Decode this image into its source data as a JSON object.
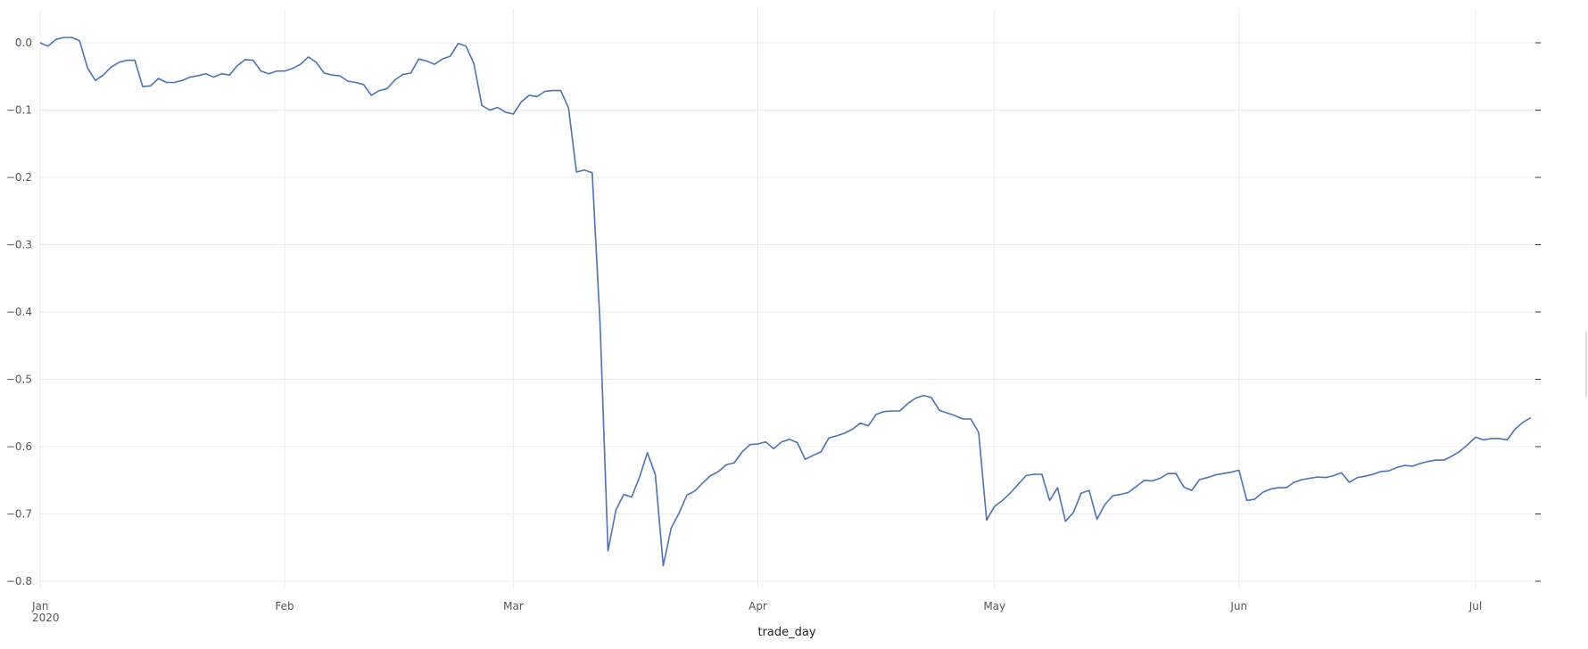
{
  "chart_data": {
    "type": "line",
    "xlabel": "trade_day",
    "ylabel": "",
    "ylim": [
      -0.8,
      0.0
    ],
    "xlim": [
      "2020-01-01",
      "2020-07-08"
    ],
    "grid": true,
    "y_ticks": [
      0.0,
      -0.1,
      -0.2,
      -0.3,
      -0.4,
      -0.5,
      -0.6,
      -0.7,
      -0.8
    ],
    "y_tick_labels": [
      "0.0",
      "−0.1",
      "−0.2",
      "−0.3",
      "−0.4",
      "−0.5",
      "−0.6",
      "−0.7",
      "−0.8"
    ],
    "x_ticks": [
      {
        "date": "2020-01-01",
        "label": "Jan",
        "sublabel": "2020"
      },
      {
        "date": "2020-02-01",
        "label": "Feb",
        "sublabel": ""
      },
      {
        "date": "2020-03-01",
        "label": "Mar",
        "sublabel": ""
      },
      {
        "date": "2020-04-01",
        "label": "Apr",
        "sublabel": ""
      },
      {
        "date": "2020-05-01",
        "label": "May",
        "sublabel": ""
      },
      {
        "date": "2020-06-01",
        "label": "Jun",
        "sublabel": ""
      },
      {
        "date": "2020-07-01",
        "label": "Jul",
        "sublabel": ""
      }
    ],
    "series": [
      {
        "color": "#4c72b0",
        "x": [
          "2020-01-01",
          "2020-01-02",
          "2020-01-03",
          "2020-01-04",
          "2020-01-05",
          "2020-01-06",
          "2020-01-07",
          "2020-01-08",
          "2020-01-09",
          "2020-01-10",
          "2020-01-11",
          "2020-01-12",
          "2020-01-13",
          "2020-01-14",
          "2020-01-15",
          "2020-01-16",
          "2020-01-17",
          "2020-01-18",
          "2020-01-19",
          "2020-01-20",
          "2020-01-21",
          "2020-01-22",
          "2020-01-23",
          "2020-01-24",
          "2020-01-25",
          "2020-01-26",
          "2020-01-27",
          "2020-01-28",
          "2020-01-29",
          "2020-01-30",
          "2020-01-31",
          "2020-02-01",
          "2020-02-02",
          "2020-02-03",
          "2020-02-04",
          "2020-02-05",
          "2020-02-06",
          "2020-02-07",
          "2020-02-08",
          "2020-02-09",
          "2020-02-10",
          "2020-02-11",
          "2020-02-12",
          "2020-02-13",
          "2020-02-14",
          "2020-02-15",
          "2020-02-16",
          "2020-02-17",
          "2020-02-18",
          "2020-02-19",
          "2020-02-20",
          "2020-02-21",
          "2020-02-22",
          "2020-02-23",
          "2020-02-24",
          "2020-02-25",
          "2020-02-26",
          "2020-02-27",
          "2020-02-28",
          "2020-02-29",
          "2020-03-01",
          "2020-03-02",
          "2020-03-03",
          "2020-03-04",
          "2020-03-05",
          "2020-03-06",
          "2020-03-07",
          "2020-03-08",
          "2020-03-09",
          "2020-03-10",
          "2020-03-11",
          "2020-03-12",
          "2020-03-13",
          "2020-03-14",
          "2020-03-15",
          "2020-03-16",
          "2020-03-17",
          "2020-03-18",
          "2020-03-19",
          "2020-03-20",
          "2020-03-21",
          "2020-03-22",
          "2020-03-23",
          "2020-03-24",
          "2020-03-25",
          "2020-03-26",
          "2020-03-27",
          "2020-03-28",
          "2020-03-29",
          "2020-03-30",
          "2020-03-31",
          "2020-04-01",
          "2020-04-02",
          "2020-04-03",
          "2020-04-04",
          "2020-04-05",
          "2020-04-06",
          "2020-04-07",
          "2020-04-08",
          "2020-04-09",
          "2020-04-10",
          "2020-04-11",
          "2020-04-12",
          "2020-04-13",
          "2020-04-14",
          "2020-04-15",
          "2020-04-16",
          "2020-04-17",
          "2020-04-18",
          "2020-04-19",
          "2020-04-20",
          "2020-04-21",
          "2020-04-22",
          "2020-04-23",
          "2020-04-24",
          "2020-04-25",
          "2020-04-26",
          "2020-04-27",
          "2020-04-28",
          "2020-04-29",
          "2020-04-30",
          "2020-05-01",
          "2020-05-02",
          "2020-05-03",
          "2020-05-04",
          "2020-05-05",
          "2020-05-06",
          "2020-05-07",
          "2020-05-08",
          "2020-05-09",
          "2020-05-10",
          "2020-05-11",
          "2020-05-12",
          "2020-05-13",
          "2020-05-14",
          "2020-05-15",
          "2020-05-16",
          "2020-05-17",
          "2020-05-18",
          "2020-05-19",
          "2020-05-20",
          "2020-05-21",
          "2020-05-22",
          "2020-05-23",
          "2020-05-24",
          "2020-05-25",
          "2020-05-26",
          "2020-05-27",
          "2020-05-28",
          "2020-05-29",
          "2020-05-30",
          "2020-05-31",
          "2020-06-01",
          "2020-06-02",
          "2020-06-03",
          "2020-06-04",
          "2020-06-05",
          "2020-06-06",
          "2020-06-07",
          "2020-06-08",
          "2020-06-09",
          "2020-06-10",
          "2020-06-11",
          "2020-06-12",
          "2020-06-13",
          "2020-06-14",
          "2020-06-15",
          "2020-06-16",
          "2020-06-17",
          "2020-06-18",
          "2020-06-19",
          "2020-06-20",
          "2020-06-21",
          "2020-06-22",
          "2020-06-23",
          "2020-06-24",
          "2020-06-25",
          "2020-06-26",
          "2020-06-27",
          "2020-06-28",
          "2020-06-29",
          "2020-06-30",
          "2020-07-01",
          "2020-07-02",
          "2020-07-03",
          "2020-07-04",
          "2020-07-05",
          "2020-07-06",
          "2020-07-07",
          "2020-07-08"
        ],
        "y": [
          0.0,
          -0.005,
          0.005,
          0.008,
          0.008,
          0.003,
          -0.037,
          -0.056,
          -0.048,
          -0.036,
          -0.029,
          -0.026,
          -0.026,
          -0.065,
          -0.064,
          -0.053,
          -0.059,
          -0.059,
          -0.056,
          -0.051,
          -0.049,
          -0.046,
          -0.051,
          -0.046,
          -0.048,
          -0.034,
          -0.025,
          -0.026,
          -0.042,
          -0.046,
          -0.042,
          -0.042,
          -0.038,
          -0.032,
          -0.021,
          -0.029,
          -0.045,
          -0.048,
          -0.049,
          -0.057,
          -0.059,
          -0.062,
          -0.078,
          -0.071,
          -0.068,
          -0.055,
          -0.047,
          -0.045,
          -0.024,
          -0.027,
          -0.032,
          -0.024,
          -0.02,
          -0.001,
          -0.005,
          -0.031,
          -0.093,
          -0.1,
          -0.096,
          -0.103,
          -0.106,
          -0.088,
          -0.078,
          -0.08,
          -0.072,
          -0.071,
          -0.071,
          -0.097,
          -0.192,
          -0.189,
          -0.193,
          -0.42,
          -0.755,
          -0.694,
          -0.671,
          -0.675,
          -0.645,
          -0.609,
          -0.642,
          -0.777,
          -0.721,
          -0.699,
          -0.672,
          -0.666,
          -0.654,
          -0.643,
          -0.637,
          -0.627,
          -0.624,
          -0.608,
          -0.597,
          -0.596,
          -0.593,
          -0.603,
          -0.593,
          -0.589,
          -0.594,
          -0.619,
          -0.613,
          -0.608,
          -0.587,
          -0.584,
          -0.58,
          -0.574,
          -0.565,
          -0.569,
          -0.552,
          -0.548,
          -0.547,
          -0.547,
          -0.536,
          -0.528,
          -0.524,
          -0.527,
          -0.546,
          -0.55,
          -0.554,
          -0.559,
          -0.559,
          -0.579,
          -0.709,
          -0.689,
          -0.68,
          -0.669,
          -0.656,
          -0.643,
          -0.641,
          -0.641,
          -0.68,
          -0.661,
          -0.711,
          -0.698,
          -0.669,
          -0.665,
          -0.708,
          -0.686,
          -0.673,
          -0.671,
          -0.668,
          -0.659,
          -0.65,
          -0.651,
          -0.647,
          -0.64,
          -0.64,
          -0.66,
          -0.665,
          -0.649,
          -0.646,
          -0.642,
          -0.64,
          -0.638,
          -0.635,
          -0.68,
          -0.678,
          -0.668,
          -0.663,
          -0.661,
          -0.661,
          -0.653,
          -0.649,
          -0.647,
          -0.645,
          -0.646,
          -0.643,
          -0.639,
          -0.653,
          -0.646,
          -0.644,
          -0.641,
          -0.637,
          -0.636,
          -0.631,
          -0.628,
          -0.629,
          -0.625,
          -0.622,
          -0.62,
          -0.62,
          -0.614,
          -0.607,
          -0.597,
          -0.586,
          -0.59,
          -0.588,
          -0.588,
          -0.59,
          -0.574,
          -0.564,
          -0.557
        ]
      }
    ]
  }
}
